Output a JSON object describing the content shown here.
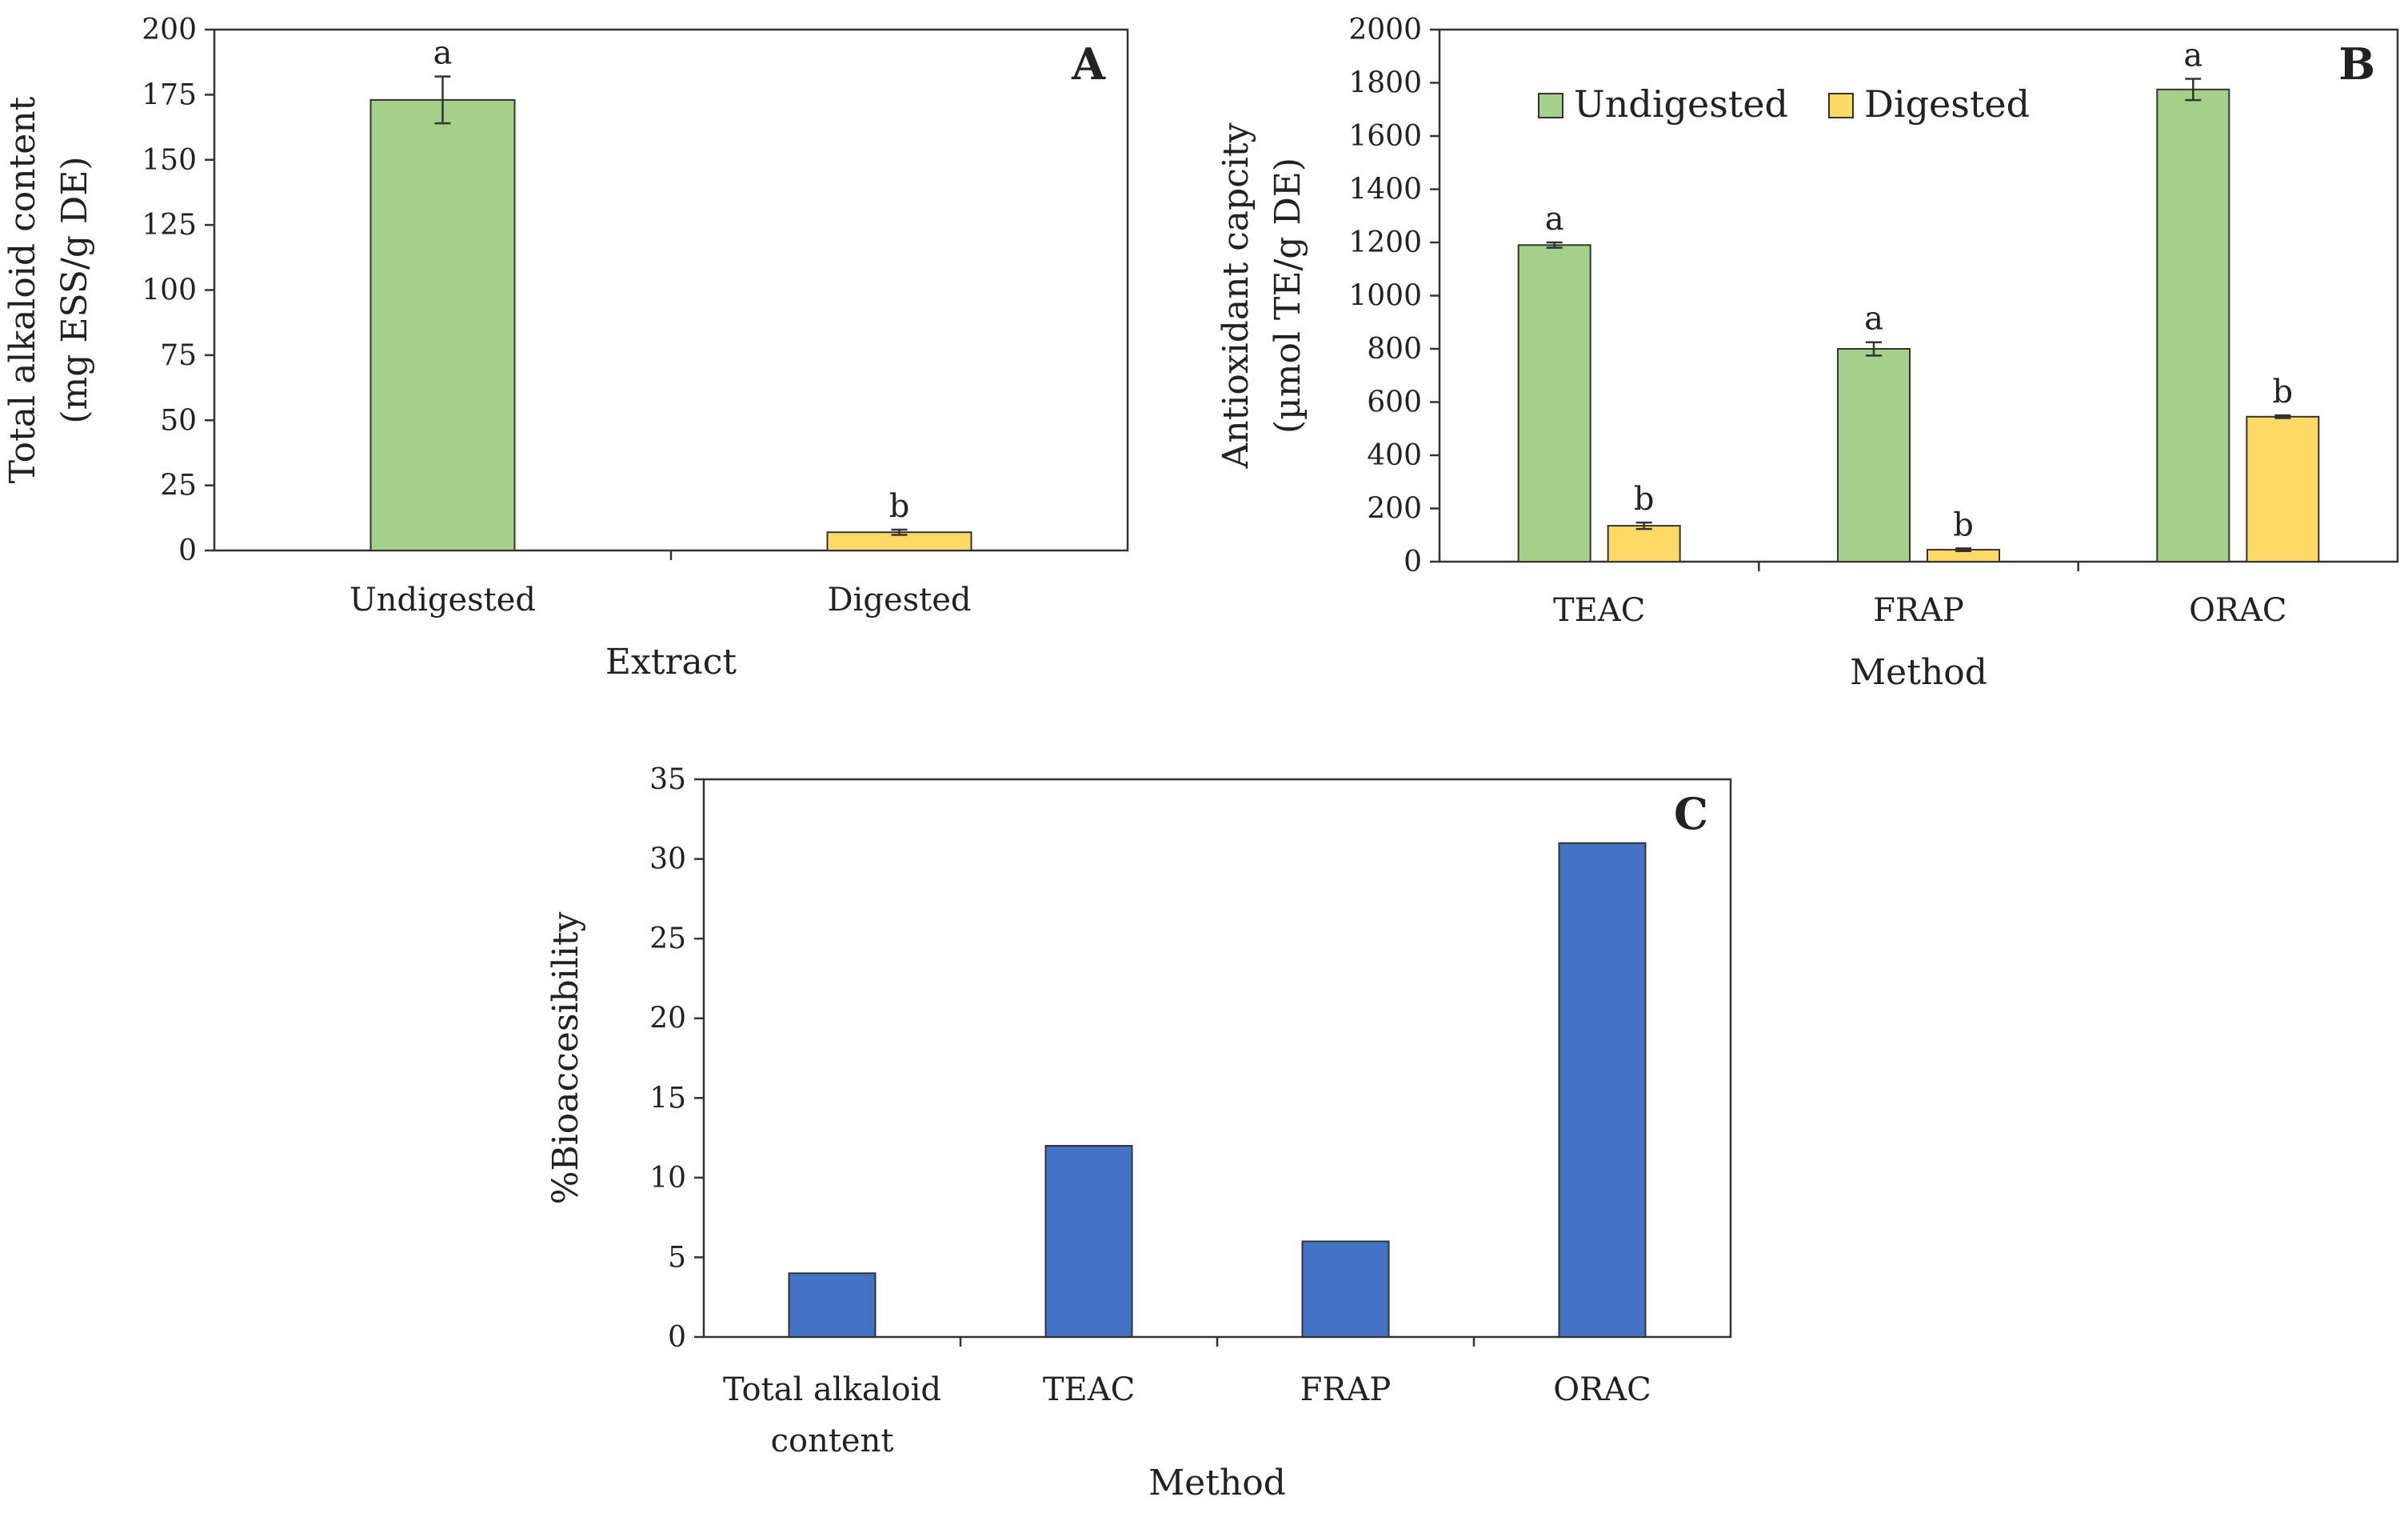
{
  "colors": {
    "undigested": "#a5d08a",
    "digested": "#ffd966",
    "bio": "#4472c4",
    "stroke": "#333333"
  },
  "chart_data": [
    {
      "id": "A",
      "type": "bar",
      "panel_label": "A",
      "title": "",
      "xlabel": "Extract",
      "ylabel_lines": [
        "Total alkaloid content",
        "(mg ESS/g DE)"
      ],
      "ylim": [
        0,
        200
      ],
      "yticks": [
        "0",
        "25",
        "50",
        "75",
        "100",
        "125",
        "150",
        "175",
        "200"
      ],
      "categories": [
        "Undigested",
        "Digested"
      ],
      "values": [
        173,
        7
      ],
      "errors": [
        9,
        1
      ],
      "letters": [
        "a",
        "b"
      ],
      "colors": [
        "undigested",
        "digested"
      ]
    },
    {
      "id": "B",
      "type": "bar",
      "panel_label": "B",
      "title": "",
      "xlabel": "Method",
      "ylabel_lines": [
        "Antioxidant capcity",
        "(µmol TE/g DE)"
      ],
      "ylim": [
        0,
        2000
      ],
      "yticks": [
        "0",
        "200",
        "400",
        "600",
        "800",
        "1000",
        "1200",
        "1400",
        "1600",
        "1800",
        "2000"
      ],
      "categories": [
        "TEAC",
        "FRAP",
        "ORAC"
      ],
      "legend": "top-left",
      "series": [
        {
          "name": "Undigested",
          "color": "undigested",
          "values": [
            1190,
            800,
            1775
          ],
          "errors": [
            10,
            25,
            40
          ],
          "letters": [
            "a",
            "a",
            "a"
          ]
        },
        {
          "name": "Digested",
          "color": "digested",
          "values": [
            135,
            45,
            545
          ],
          "errors": [
            12,
            5,
            5
          ],
          "letters": [
            "b",
            "b",
            "b"
          ]
        }
      ]
    },
    {
      "id": "C",
      "type": "bar",
      "panel_label": "C",
      "title": "",
      "xlabel": "Method",
      "ylabel_lines": [
        "%Bioaccesibility"
      ],
      "ylim": [
        0,
        35
      ],
      "yticks": [
        "0",
        "5",
        "10",
        "15",
        "20",
        "25",
        "30",
        "35"
      ],
      "categories": [
        [
          "Total alkaloid",
          "content"
        ],
        [
          "TEAC"
        ],
        [
          "FRAP"
        ],
        [
          "ORAC"
        ]
      ],
      "values": [
        4,
        12,
        6,
        31
      ],
      "color": "bio"
    }
  ]
}
